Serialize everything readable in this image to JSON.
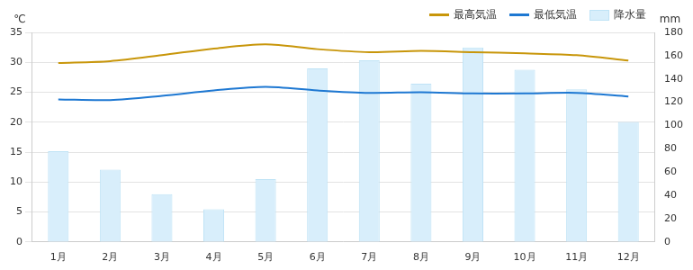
{
  "chart_data": {
    "type": "bar",
    "ylabel": "℃",
    "y2label": "mm",
    "categories": [
      "1月",
      "2月",
      "3月",
      "4月",
      "5月",
      "6月",
      "7月",
      "8月",
      "9月",
      "10月",
      "11月",
      "12月"
    ],
    "series": [
      {
        "name": "最高気温",
        "type": "line",
        "color": "#c8960a",
        "values": [
          29.9,
          30.2,
          31.2,
          32.3,
          33.0,
          32.2,
          31.7,
          31.9,
          31.7,
          31.5,
          31.2,
          30.3
        ]
      },
      {
        "name": "最低気温",
        "type": "line",
        "color": "#1e78d2",
        "values": [
          23.8,
          23.7,
          24.4,
          25.3,
          25.9,
          25.3,
          24.9,
          25.0,
          24.8,
          24.8,
          24.9,
          24.3
        ]
      },
      {
        "name": "降水量",
        "type": "bar",
        "color": "#d8eefb",
        "axis": "y2",
        "values": [
          78,
          62,
          41,
          28,
          54,
          149,
          156,
          136,
          167,
          148,
          131,
          103
        ]
      }
    ],
    "ylim": [
      0,
      35
    ],
    "yticks": [
      0,
      5,
      10,
      15,
      20,
      25,
      30,
      35
    ],
    "y2lim": [
      0,
      180
    ],
    "y2ticks": [
      0,
      20,
      40,
      60,
      80,
      100,
      120,
      140,
      160,
      180
    ],
    "grid": true,
    "legend": "top-right"
  }
}
